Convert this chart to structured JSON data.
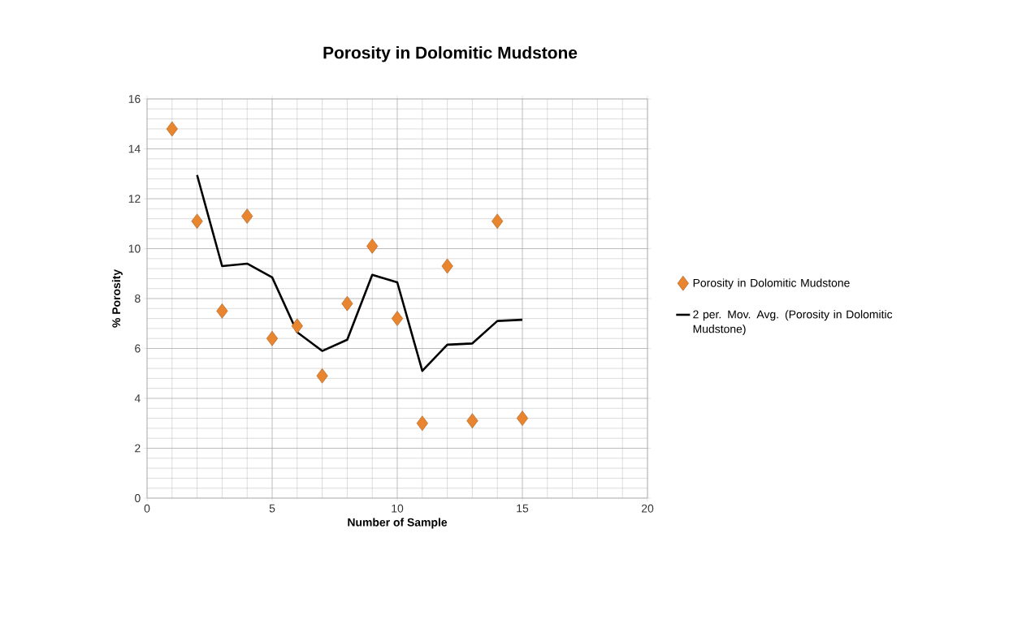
{
  "chart_data": {
    "type": "scatter",
    "title": "Porosity in Dolomitic Mudstone",
    "xlabel": "Number of Sample",
    "ylabel": "% Porosity",
    "xlim": [
      0,
      20
    ],
    "xticks": [
      0,
      5,
      10,
      15,
      20
    ],
    "ylim": [
      0,
      16
    ],
    "yticks": [
      0,
      2,
      4,
      6,
      8,
      10,
      12,
      14,
      16
    ],
    "grid": true,
    "legend": "right",
    "series": [
      {
        "name": "Porosity in Dolomitic Mudstone",
        "marker": "diamond",
        "color": "#e8852e",
        "x": [
          1,
          2,
          3,
          4,
          5,
          6,
          7,
          8,
          9,
          10,
          11,
          12,
          13,
          14,
          15
        ],
        "values": [
          14.8,
          11.1,
          7.5,
          11.3,
          6.4,
          6.9,
          4.9,
          7.8,
          10.1,
          7.2,
          3.0,
          9.3,
          3.1,
          11.1,
          3.2
        ]
      },
      {
        "name": "2 per. Mov. Avg. (Porosity in Dolomitic Mudstone)",
        "type": "line",
        "marker": "none",
        "line_style": "solid",
        "color": "#000000",
        "x": [
          2,
          3,
          4,
          5,
          6,
          7,
          8,
          9,
          10,
          11,
          12,
          13,
          14,
          15
        ],
        "values": [
          12.95,
          9.3,
          9.4,
          8.85,
          6.65,
          5.9,
          6.35,
          8.95,
          8.65,
          5.1,
          6.15,
          6.2,
          7.1,
          7.15
        ]
      }
    ]
  }
}
